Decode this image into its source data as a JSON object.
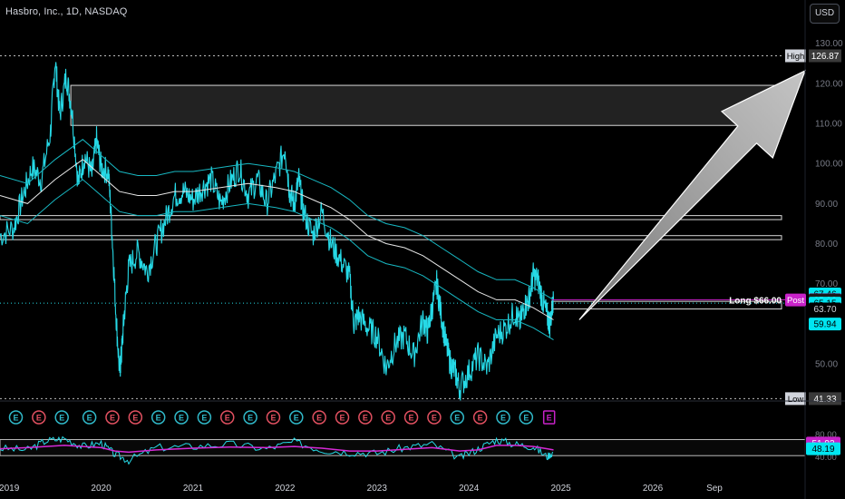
{
  "header": {
    "title": "Hasbro, Inc., 1D, NASDAQ",
    "currency_button": "USD"
  },
  "colors": {
    "background": "#000000",
    "price_line": "#26d9e6",
    "ma_line": "#e6e6e6",
    "band_line": "#18b8c2",
    "rsi_line": "#26d9e6",
    "rsi_ma_line": "#d62ad6",
    "arrow_fill": "#9a9a9a",
    "zone_fill": "#222222",
    "magenta": "#c822c8",
    "cyan": "#00e5f0",
    "earnings_red": "#e05060",
    "earnings_cyan": "#30b8c8"
  },
  "chart_data": {
    "type": "line",
    "symbol": "Hasbro, Inc.",
    "interval": "1D",
    "exchange": "NASDAQ",
    "y_axis": {
      "ticks": [
        50.0,
        60.0,
        70.0,
        80.0,
        90.0,
        100.0,
        110.0,
        120.0,
        130.0
      ],
      "tick_labels": [
        "50.00",
        "60.00",
        "70.00",
        "80.00",
        "90.00",
        "100.00",
        "110.00",
        "120.00",
        "130.00"
      ],
      "ylim": [
        43.0,
        134.0
      ]
    },
    "x_axis": {
      "tick_labels": [
        "2019",
        "2020",
        "2021",
        "2022",
        "2023",
        "2024",
        "2025",
        "2026",
        "Sep"
      ],
      "tick_positions": [
        2019.0,
        2020.0,
        2021.0,
        2022.0,
        2023.0,
        2024.0,
        2025.0,
        2026.0,
        2026.67
      ],
      "xlim": [
        2018.9,
        2027.4
      ]
    },
    "series": [
      {
        "kind": "price",
        "x": [
          2018.9,
          2019.05,
          2019.15,
          2019.25,
          2019.35,
          2019.45,
          2019.5,
          2019.55,
          2019.62,
          2019.68,
          2019.75,
          2019.82,
          2019.9,
          2019.95,
          2020.0,
          2020.08,
          2020.12,
          2020.16,
          2020.2,
          2020.22,
          2020.25,
          2020.3,
          2020.4,
          2020.5,
          2020.6,
          2020.7,
          2020.8,
          2020.9,
          2021.0,
          2021.1,
          2021.2,
          2021.3,
          2021.4,
          2021.5,
          2021.6,
          2021.7,
          2021.8,
          2021.9,
          2022.0,
          2022.05,
          2022.1,
          2022.15,
          2022.2,
          2022.3,
          2022.4,
          2022.5,
          2022.6,
          2022.7,
          2022.75,
          2022.8,
          2022.9,
          2023.0,
          2023.1,
          2023.2,
          2023.3,
          2023.4,
          2023.5,
          2023.55,
          2023.6,
          2023.65,
          2023.7,
          2023.75,
          2023.8,
          2023.85,
          2023.9,
          2024.0,
          2024.1,
          2024.2,
          2024.3,
          2024.4,
          2024.5,
          2024.55,
          2024.6,
          2024.65,
          2024.7,
          2024.75,
          2024.8,
          2024.85,
          2024.88,
          2024.92
        ],
        "y": [
          82,
          84,
          92,
          99,
          96,
          108,
          126,
          112,
          122,
          114,
          95,
          102,
          97,
          106,
          99,
          98,
          82,
          63,
          48,
          52,
          62,
          74,
          78,
          73,
          80,
          86,
          92,
          93,
          91,
          94,
          96,
          90,
          95,
          99,
          92,
          96,
          90,
          97,
          104,
          93,
          90,
          96,
          88,
          82,
          88,
          80,
          76,
          72,
          60,
          62,
          59,
          57,
          49,
          55,
          57,
          52,
          61,
          58,
          64,
          70,
          62,
          55,
          50,
          48,
          44,
          48,
          52,
          49,
          57,
          59,
          63,
          60,
          64,
          66,
          72,
          71,
          66,
          62,
          60,
          65.96
        ],
        "color": "#26d9e6"
      },
      {
        "kind": "ma",
        "x": [
          2018.9,
          2019.2,
          2019.5,
          2019.8,
          2020.0,
          2020.2,
          2020.4,
          2020.6,
          2020.8,
          2021.0,
          2021.3,
          2021.6,
          2021.9,
          2022.1,
          2022.3,
          2022.5,
          2022.7,
          2022.9,
          2023.1,
          2023.3,
          2023.5,
          2023.7,
          2023.9,
          2024.1,
          2024.3,
          2024.5,
          2024.7,
          2024.92
        ],
        "y": [
          92,
          90,
          96,
          101,
          97,
          93,
          92,
          92,
          93,
          93,
          94,
          95,
          94,
          93,
          91,
          89,
          86,
          82,
          80,
          79,
          77,
          74,
          71,
          68,
          66,
          66,
          64,
          61
        ],
        "color": "#e6e6e6"
      },
      {
        "kind": "upper_band",
        "x": [
          2018.9,
          2019.2,
          2019.5,
          2019.8,
          2020.0,
          2020.2,
          2020.4,
          2020.6,
          2020.8,
          2021.0,
          2021.3,
          2021.6,
          2021.9,
          2022.1,
          2022.3,
          2022.5,
          2022.7,
          2022.9,
          2023.1,
          2023.3,
          2023.5,
          2023.7,
          2023.9,
          2024.1,
          2024.3,
          2024.5,
          2024.7,
          2024.92
        ],
        "y": [
          97,
          95,
          101,
          106,
          102,
          98,
          97,
          97,
          98,
          98,
          99,
          100,
          99,
          98,
          96,
          94,
          91,
          87,
          85,
          84,
          82,
          79,
          76,
          73,
          71,
          71,
          69,
          66
        ],
        "color": "#18b8c2"
      },
      {
        "kind": "lower_band",
        "x": [
          2018.9,
          2019.2,
          2019.5,
          2019.8,
          2020.0,
          2020.2,
          2020.4,
          2020.6,
          2020.8,
          2021.0,
          2021.3,
          2021.6,
          2021.9,
          2022.1,
          2022.3,
          2022.5,
          2022.7,
          2022.9,
          2023.1,
          2023.3,
          2023.5,
          2023.7,
          2023.9,
          2024.1,
          2024.3,
          2024.5,
          2024.7,
          2024.92
        ],
        "y": [
          87,
          85,
          91,
          96,
          92,
          88,
          87,
          87,
          88,
          88,
          89,
          90,
          89,
          88,
          86,
          84,
          81,
          77,
          75,
          74,
          72,
          69,
          66,
          63,
          61,
          61,
          59,
          56
        ],
        "color": "#18b8c2"
      }
    ],
    "zones": [
      {
        "y_top": 119.5,
        "y_bottom": 109.5,
        "x_start": 2019.67,
        "x_end": 2027.4
      },
      {
        "y_top": 87.0,
        "y_bottom": 86.0,
        "x_start": 2018.9,
        "x_end": 2027.4
      },
      {
        "y_top": 82.0,
        "y_bottom": 81.0,
        "x_start": 2018.9,
        "x_end": 2027.4
      },
      {
        "y_top": 65.6,
        "y_bottom": 63.7,
        "x_start": 2024.9,
        "x_end": 2027.4
      }
    ],
    "levels": {
      "high": {
        "label": "High",
        "value": "126.87",
        "y": 126.87
      },
      "low": {
        "label": "Low",
        "value": "41.33",
        "y": 41.33
      },
      "current_dotted": 65.15
    },
    "price_tags": [
      {
        "text": "67.46",
        "y": 67.46,
        "bg": "#00e5f0",
        "fg": "#000000"
      },
      {
        "text": "66.00",
        "y": 66.0,
        "bg": "#c822c8",
        "fg": "#ffffff"
      },
      {
        "text": "65.96",
        "y": 65.96,
        "bg": "#1a1a1a",
        "fg": "#ffffff",
        "prefix": "Post"
      },
      {
        "text": "65.15",
        "y": 65.15,
        "bg": "#00e5f0",
        "fg": "#000000"
      },
      {
        "text": "63.70",
        "y": 63.7,
        "bg": "#000000",
        "fg": "#d1d4dc"
      },
      {
        "text": "59.94",
        "y": 59.94,
        "bg": "#00e5f0",
        "fg": "#000000"
      }
    ],
    "long_label": {
      "text": "Long $66.00",
      "y": 66.0
    },
    "arrow": {
      "from": [
        2025.2,
        61.0
      ],
      "to": [
        2027.95,
        120.0
      ]
    },
    "earnings": {
      "x": [
        2019.0,
        2019.25,
        2019.5,
        2019.75,
        2020.05,
        2020.3,
        2020.55,
        2020.8,
        2021.05,
        2021.3,
        2021.55,
        2021.8,
        2022.05,
        2022.3,
        2022.55,
        2022.8,
        2023.05,
        2023.3,
        2023.55,
        2023.8,
        2024.05,
        2024.3,
        2024.55,
        2024.8,
        2025.05
      ],
      "label": "E",
      "colors": [
        "red",
        "cyan",
        "red",
        "cyan",
        "cyan",
        "red",
        "red",
        "cyan",
        "cyan",
        "cyan",
        "red",
        "cyan",
        "red",
        "cyan",
        "red",
        "red",
        "red",
        "red",
        "red",
        "red",
        "cyan",
        "red",
        "cyan",
        "cyan",
        "magenta"
      ]
    },
    "rsi": {
      "ylim": [
        20,
        90
      ],
      "levels": [
        {
          "text": "80.00",
          "y": 80
        },
        {
          "text": "40.00",
          "y": 40
        }
      ],
      "tags": [
        {
          "text": "51.93",
          "y": 64,
          "bg": "#c822c8",
          "fg": "#ffffff"
        },
        {
          "text": "48.19",
          "y": 54,
          "bg": "#00e5f0",
          "fg": "#000000"
        }
      ],
      "band_top": 70,
      "band_bottom": 42,
      "x": [
        2018.9,
        2019.2,
        2019.4,
        2019.6,
        2019.8,
        2020.0,
        2020.15,
        2020.3,
        2020.6,
        2021.0,
        2021.4,
        2021.8,
        2022.1,
        2022.4,
        2022.7,
        2023.0,
        2023.3,
        2023.6,
        2023.9,
        2024.1,
        2024.3,
        2024.5,
        2024.7,
        2024.85,
        2024.92
      ],
      "y": [
        55,
        52,
        68,
        72,
        58,
        64,
        44,
        34,
        56,
        58,
        62,
        54,
        66,
        52,
        48,
        46,
        56,
        62,
        38,
        54,
        70,
        62,
        58,
        40,
        48.19
      ],
      "ma_y": [
        54,
        56,
        58,
        60,
        58,
        56,
        50,
        48,
        52,
        55,
        57,
        56,
        58,
        55,
        50,
        50,
        53,
        56,
        50,
        52,
        60,
        60,
        58,
        54,
        51.93
      ]
    }
  }
}
